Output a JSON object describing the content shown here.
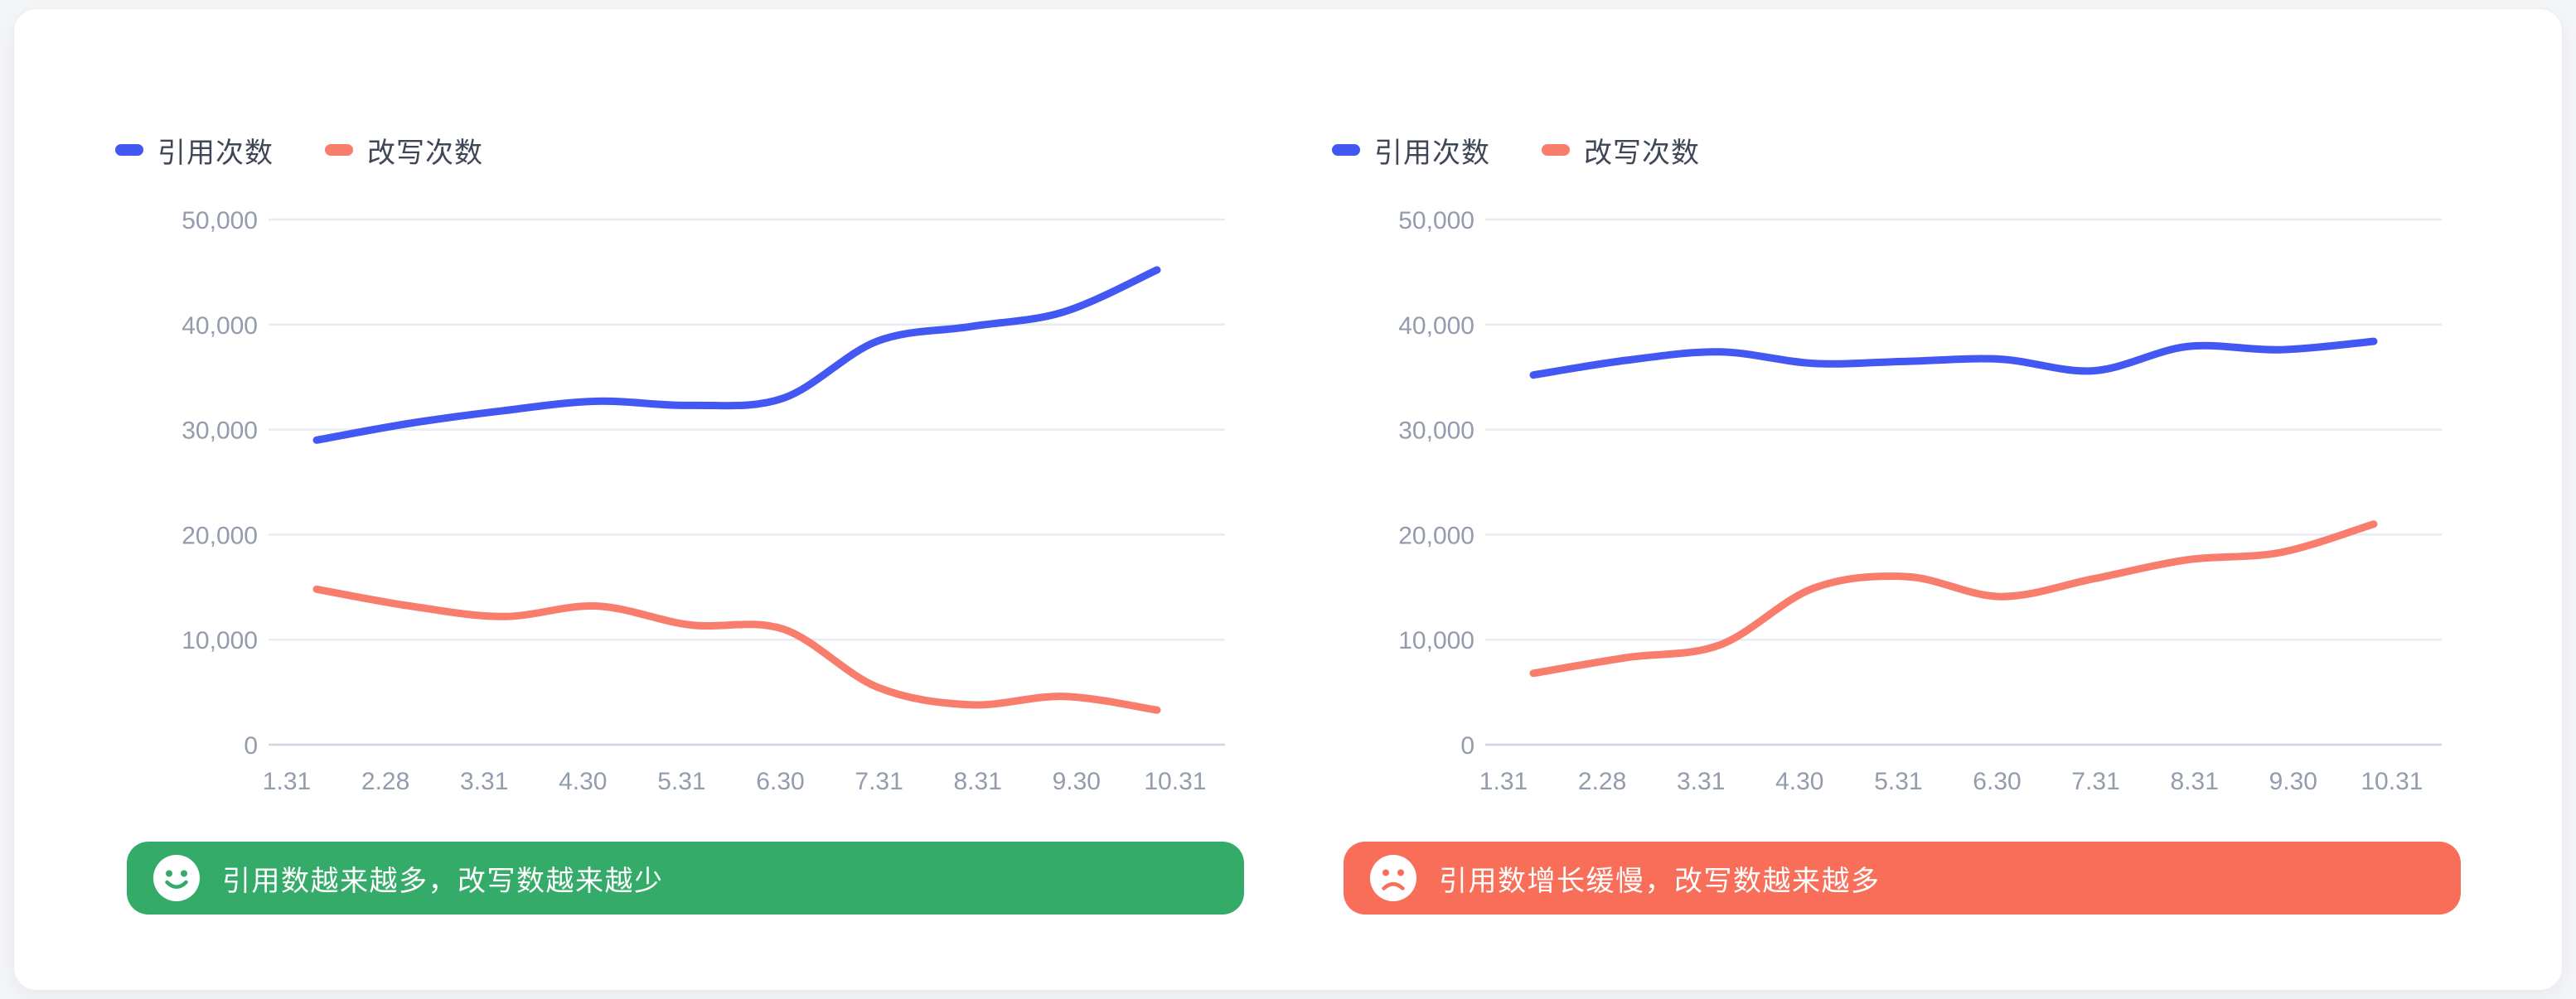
{
  "colors": {
    "series_blue": "#4357F2",
    "series_salmon": "#F97D6C",
    "banner_green": "#35AB69",
    "banner_red": "#F96E59",
    "grid_line": "#E8EBF2",
    "axis_line": "#CFD6E2",
    "axis_text": "#939CAD",
    "legend_text": "#3F4757"
  },
  "y_axis": {
    "labels": [
      "50,000",
      "40,000",
      "30,000",
      "20,000",
      "10,000",
      "0"
    ],
    "max": 50000,
    "min": 0
  },
  "chart_data": [
    {
      "type": "line",
      "categories": [
        "1.31",
        "2.28",
        "3.31",
        "4.30",
        "5.31",
        "6.30",
        "7.31",
        "8.31",
        "9.30",
        "10.31"
      ],
      "ylim": [
        0,
        50000
      ],
      "grid": true,
      "legend_position": "top-left",
      "series": [
        {
          "name": "引用次数",
          "color": "#4357F2",
          "values": [
            29000,
            30600,
            31800,
            32700,
            32300,
            33000,
            38400,
            39800,
            41200,
            45200
          ]
        },
        {
          "name": "改写次数",
          "color": "#F97D6C",
          "values": [
            14800,
            13200,
            12200,
            13200,
            11400,
            11000,
            5500,
            3800,
            4600,
            3300
          ]
        }
      ],
      "banner": {
        "text": "引用数越来越多，改写数越来越少",
        "color": "#35AB69",
        "icon": "smiley-face"
      }
    },
    {
      "type": "line",
      "categories": [
        "1.31",
        "2.28",
        "3.31",
        "4.30",
        "5.31",
        "6.30",
        "7.31",
        "8.31",
        "9.30",
        "10.31"
      ],
      "ylim": [
        0,
        50000
      ],
      "grid": true,
      "legend_position": "top-left",
      "series": [
        {
          "name": "引用次数",
          "color": "#4357F2",
          "values": [
            35200,
            36600,
            37400,
            36300,
            36500,
            36700,
            35600,
            37900,
            37600,
            38400
          ]
        },
        {
          "name": "改写次数",
          "color": "#F97D6C",
          "values": [
            6800,
            8300,
            9500,
            14900,
            16000,
            14100,
            15800,
            17600,
            18300,
            21000
          ]
        }
      ],
      "banner": {
        "text": "引用数增长缓慢，改写数越来越多",
        "color": "#F96E59",
        "icon": "frowny-face"
      }
    }
  ]
}
